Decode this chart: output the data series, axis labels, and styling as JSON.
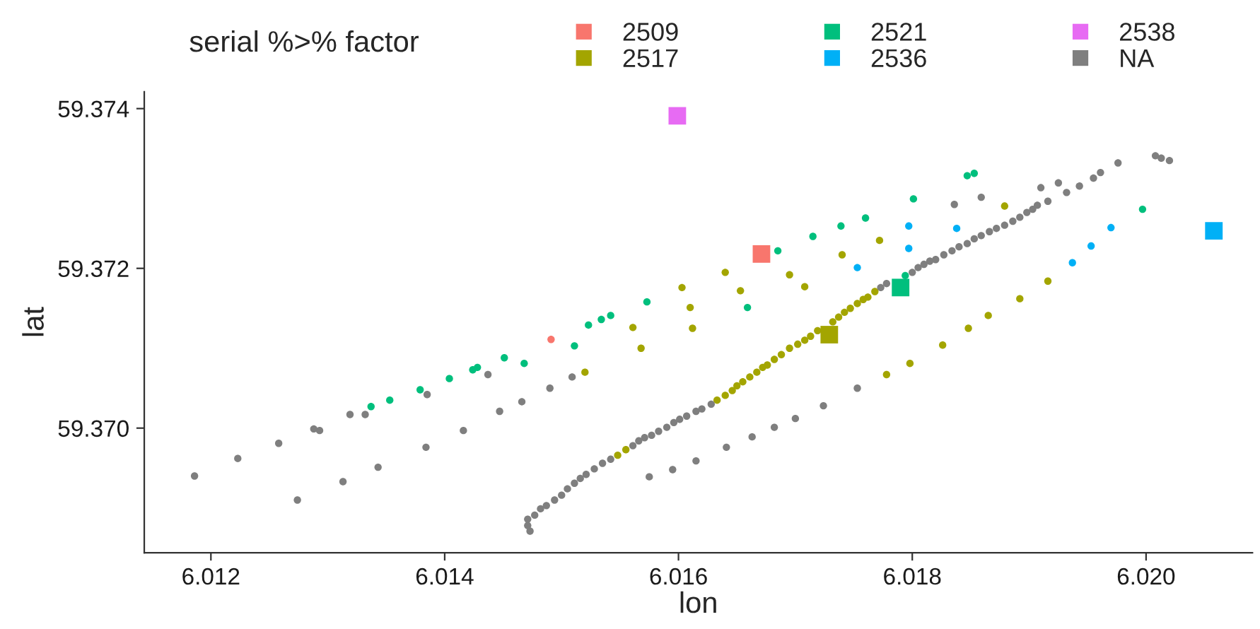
{
  "chart_data": {
    "type": "scatter",
    "xlabel": "lon",
    "ylabel": "lat",
    "legend_title": "serial %>% factor",
    "legend": "top",
    "grid": false,
    "xlim": [
      6.01143,
      6.02091
    ],
    "ylim": [
      59.36844,
      59.37421
    ],
    "xticks": [
      {
        "value": 6.012,
        "label": "6.012"
      },
      {
        "value": 6.014,
        "label": "6.014"
      },
      {
        "value": 6.016,
        "label": "6.016"
      },
      {
        "value": 6.018,
        "label": "6.018"
      },
      {
        "value": 6.02,
        "label": "6.020"
      }
    ],
    "yticks": [
      {
        "value": 59.37,
        "label": "59.370"
      },
      {
        "value": 59.372,
        "label": "59.372"
      },
      {
        "value": 59.374,
        "label": "59.374"
      }
    ],
    "series": [
      {
        "name": "2509",
        "color": "#f8766d",
        "marker": "circle",
        "x": [
          6.01491
        ],
        "values": [
          59.37111
        ]
      },
      {
        "name": "2517",
        "color": "#a3a500",
        "marker": "circle",
        "x": [
          6.0152,
          6.01561,
          6.01568,
          6.01603,
          6.0161,
          6.01612,
          6.0164,
          6.01653,
          6.01695,
          6.01708,
          6.0174,
          6.01772,
          6.01778,
          6.01798,
          6.01826,
          6.01848,
          6.01865,
          6.01892,
          6.01916,
          6.01879,
          6.01548,
          6.01555,
          6.01633,
          6.0164,
          6.01646,
          6.0165,
          6.01655,
          6.01661,
          6.01667,
          6.01672,
          6.01676,
          6.01682,
          6.01688,
          6.01695,
          6.01702,
          6.01708,
          6.01713,
          6.01719,
          6.01726,
          6.01732,
          6.01737,
          6.01742,
          6.01747,
          6.01753,
          6.01758,
          6.01762,
          6.01768
        ],
        "values": [
          59.3707,
          59.37126,
          59.371,
          59.37176,
          59.37151,
          59.37125,
          59.37195,
          59.37172,
          59.37192,
          59.37177,
          59.37217,
          59.37235,
          59.37067,
          59.37081,
          59.37104,
          59.37125,
          59.37141,
          59.37162,
          59.37184,
          59.37278,
          59.36966,
          59.36973,
          59.37035,
          59.37041,
          59.37047,
          59.37053,
          59.37058,
          59.37064,
          59.3707,
          59.37076,
          59.37079,
          59.37086,
          59.37092,
          59.371,
          59.37105,
          59.3711,
          59.37115,
          59.37122,
          null,
          59.37133,
          59.37139,
          59.37145,
          59.3715,
          59.37156,
          59.37161,
          59.37164,
          59.37171
        ]
      },
      {
        "name": "2521",
        "color": "#00bf7d",
        "marker": "circle",
        "x": [
          6.01337,
          6.01353,
          6.01379,
          6.01404,
          6.01424,
          6.01428,
          6.01451,
          6.01468,
          6.01511,
          6.01523,
          6.01534,
          6.01542,
          6.01573,
          6.01659,
          6.01685,
          6.01715,
          6.01739,
          6.0176,
          6.01794,
          6.01801,
          6.01847,
          6.01853,
          6.01997
        ],
        "values": [
          59.37027,
          59.37035,
          59.37048,
          59.37062,
          59.37073,
          59.37076,
          59.37088,
          59.37081,
          59.37103,
          59.37129,
          59.37136,
          59.37141,
          59.37158,
          59.37151,
          59.37222,
          59.3724,
          59.37253,
          59.37263,
          59.37191,
          59.37287,
          59.37316,
          59.37319,
          59.37274
        ]
      },
      {
        "name": "2536",
        "color": "#00b0f6",
        "marker": "circle",
        "x": [
          6.01753,
          6.01797,
          6.01797,
          6.01838,
          6.01937,
          6.01953,
          6.0197
        ],
        "values": [
          59.37201,
          59.37253,
          59.37225,
          59.3725,
          59.37207,
          59.37228,
          59.37251
        ]
      },
      {
        "name": "2538",
        "color": "#e76bf3",
        "marker": "square",
        "x": [
          6.01599
        ],
        "values": [
          59.37391
        ]
      },
      {
        "name": "NA",
        "color": "#7f7f7f",
        "marker": "circle",
        "x": [
          6.01186,
          6.01223,
          6.01258,
          6.01274,
          6.01288,
          6.01293,
          6.01313,
          6.01319,
          6.01332,
          6.01343,
          6.01384,
          6.01385,
          6.01416,
          6.01437,
          6.01447,
          6.01466,
          6.0149,
          6.01509,
          6.01473,
          6.01471,
          6.01471,
          6.01477,
          6.01482,
          6.01487,
          6.01494,
          6.015,
          6.01505,
          6.01511,
          6.01516,
          6.01521,
          6.01528,
          6.01535,
          6.01542,
          6.01561,
          6.01566,
          6.01571,
          6.01577,
          6.01583,
          6.0159,
          6.01596,
          6.01601,
          6.01607,
          6.01615,
          6.0162,
          6.01628,
          6.01575,
          6.01595,
          6.01615,
          6.01641,
          6.01663,
          6.01682,
          6.017,
          6.01724,
          6.01753,
          6.01773,
          6.01778,
          6.018,
          6.01805,
          6.0181,
          6.01815,
          6.0182,
          6.01827,
          6.01834,
          6.0184,
          6.01847,
          6.01853,
          6.01859,
          6.01866,
          6.01872,
          6.01879,
          6.01886,
          6.01892,
          6.01898,
          6.01903,
          6.01907,
          6.01916,
          6.01932,
          6.01943,
          6.01955,
          6.01961,
          6.01976,
          6.01836,
          6.01859,
          6.0191,
          6.01925,
          6.02008,
          6.02013,
          6.0202
        ],
        "values": [
          59.3694,
          59.36962,
          59.36981,
          59.3691,
          59.36999,
          59.36997,
          59.36933,
          59.37017,
          59.37017,
          59.36951,
          59.36976,
          59.37042,
          59.36997,
          59.37067,
          59.37021,
          59.37033,
          59.3705,
          59.37064,
          59.36871,
          59.36878,
          59.36886,
          59.36891,
          59.36899,
          59.36903,
          59.3691,
          59.36916,
          59.36924,
          59.36931,
          59.36937,
          59.36942,
          59.36949,
          59.36956,
          59.36961,
          59.36978,
          59.36984,
          59.36988,
          59.36991,
          59.36996,
          59.37001,
          59.37007,
          59.37011,
          59.37015,
          59.37021,
          59.37024,
          59.3703,
          59.36939,
          59.36948,
          59.36959,
          59.36976,
          59.36989,
          59.37001,
          59.37012,
          59.37028,
          59.3705,
          59.37176,
          59.37181,
          59.37195,
          59.37201,
          59.37205,
          59.37209,
          59.37211,
          59.37217,
          59.37222,
          59.37227,
          59.37231,
          59.37237,
          59.37241,
          59.37246,
          59.3725,
          59.37254,
          59.37259,
          59.37264,
          59.3727,
          59.37274,
          59.37279,
          59.37284,
          59.37295,
          59.37303,
          59.37313,
          59.3732,
          59.37332,
          59.3728,
          59.37289,
          59.37301,
          59.37307,
          59.37341,
          59.37338,
          59.37335
        ]
      },
      {
        "color": "#f8766d",
        "marker": "square",
        "x": [
          6.01671
        ],
        "values": [
          59.37218
        ]
      },
      {
        "color": "#a3a500",
        "marker": "square",
        "x": [
          6.01729
        ],
        "values": [
          59.37117
        ]
      },
      {
        "color": "#00bf7d",
        "marker": "square",
        "x": [
          6.0179
        ],
        "values": [
          59.37176
        ]
      },
      {
        "color": "#00b0f6",
        "marker": "square",
        "x": [
          6.02058
        ],
        "values": [
          59.37247
        ]
      }
    ]
  }
}
